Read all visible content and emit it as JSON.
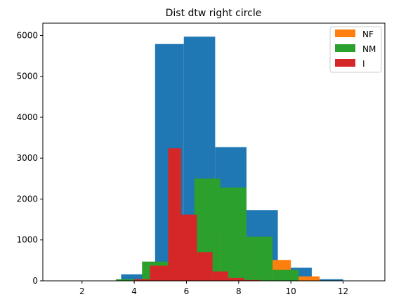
{
  "chart_data": {
    "type": "histogram",
    "title": "Dist dtw right circle",
    "xlabel": "",
    "ylabel": "",
    "xlim": [
      0.5,
      13.6
    ],
    "ylim": [
      0,
      6300
    ],
    "xticks": [
      2,
      4,
      6,
      8,
      10,
      12
    ],
    "yticks": [
      0,
      1000,
      2000,
      3000,
      4000,
      5000,
      6000
    ],
    "grid": false,
    "legend_position": "top-right",
    "series": [
      {
        "name": "",
        "color": "#1f77b4",
        "bins": [
          {
            "x0": 3.5,
            "x1": 4.8,
            "value": 160
          },
          {
            "x0": 4.8,
            "x1": 5.9,
            "value": 5790
          },
          {
            "x0": 5.9,
            "x1": 7.1,
            "value": 5970
          },
          {
            "x0": 7.1,
            "x1": 8.3,
            "value": 3270
          },
          {
            "x0": 8.3,
            "x1": 9.5,
            "value": 1730
          },
          {
            "x0": 9.5,
            "x1": 10.8,
            "value": 320
          },
          {
            "x0": 10.8,
            "x1": 12.0,
            "value": 40
          }
        ]
      },
      {
        "name": "NF",
        "color": "#ff7f0e",
        "bins": [
          {
            "x0": 4.4,
            "x1": 5.3,
            "value": 40
          },
          {
            "x0": 5.3,
            "x1": 6.2,
            "value": 100
          },
          {
            "x0": 6.2,
            "x1": 7.1,
            "value": 680
          },
          {
            "x0": 7.1,
            "x1": 8.0,
            "value": 1160
          },
          {
            "x0": 8.0,
            "x1": 8.9,
            "value": 1000
          },
          {
            "x0": 8.9,
            "x1": 10.0,
            "value": 510
          },
          {
            "x0": 10.0,
            "x1": 11.1,
            "value": 110
          }
        ]
      },
      {
        "name": "NM",
        "color": "#2ca02c",
        "bins": [
          {
            "x0": 3.3,
            "x1": 4.3,
            "value": 40
          },
          {
            "x0": 4.3,
            "x1": 5.3,
            "value": 470
          },
          {
            "x0": 5.3,
            "x1": 6.3,
            "value": 1260
          },
          {
            "x0": 6.3,
            "x1": 7.3,
            "value": 2500
          },
          {
            "x0": 7.3,
            "x1": 8.3,
            "value": 2280
          },
          {
            "x0": 8.3,
            "x1": 9.3,
            "value": 1080
          },
          {
            "x0": 9.3,
            "x1": 10.3,
            "value": 270
          }
        ]
      },
      {
        "name": "I",
        "color": "#d62728",
        "bins": [
          {
            "x0": 4.0,
            "x1": 4.6,
            "value": 40
          },
          {
            "x0": 4.6,
            "x1": 5.3,
            "value": 370
          },
          {
            "x0": 5.3,
            "x1": 5.8,
            "value": 3240
          },
          {
            "x0": 5.8,
            "x1": 6.4,
            "value": 1620
          },
          {
            "x0": 6.4,
            "x1": 7.0,
            "value": 700
          },
          {
            "x0": 7.0,
            "x1": 7.6,
            "value": 230
          },
          {
            "x0": 7.6,
            "x1": 8.2,
            "value": 70
          },
          {
            "x0": 8.2,
            "x1": 8.8,
            "value": 20
          }
        ]
      }
    ]
  }
}
